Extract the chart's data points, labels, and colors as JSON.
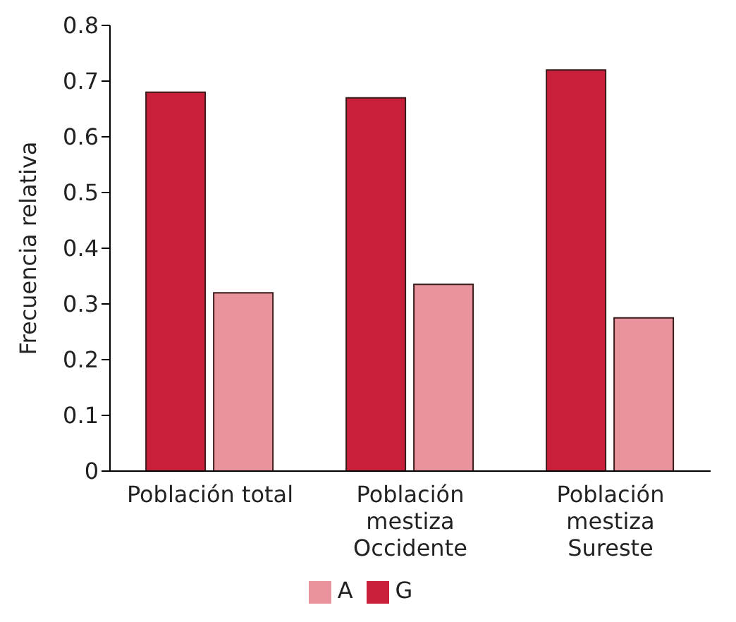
{
  "chart_data": {
    "type": "bar",
    "ylabel": "Frecuencia relativa",
    "categories": [
      "Población total",
      "Población\nmestiza\nOccidente",
      "Población\nmestiza\nSureste"
    ],
    "series": [
      {
        "name": "G",
        "color": "#c8203a",
        "values": [
          0.68,
          0.67,
          0.72
        ]
      },
      {
        "name": "A",
        "color": "#e8939d",
        "values": [
          0.32,
          0.335,
          0.275
        ]
      }
    ],
    "ylim": [
      0,
      0.8
    ],
    "yticks": [
      0,
      0.1,
      0.2,
      0.3,
      0.4,
      0.5,
      0.6,
      0.7,
      0.8
    ],
    "grid": false,
    "legend": "bottom"
  }
}
